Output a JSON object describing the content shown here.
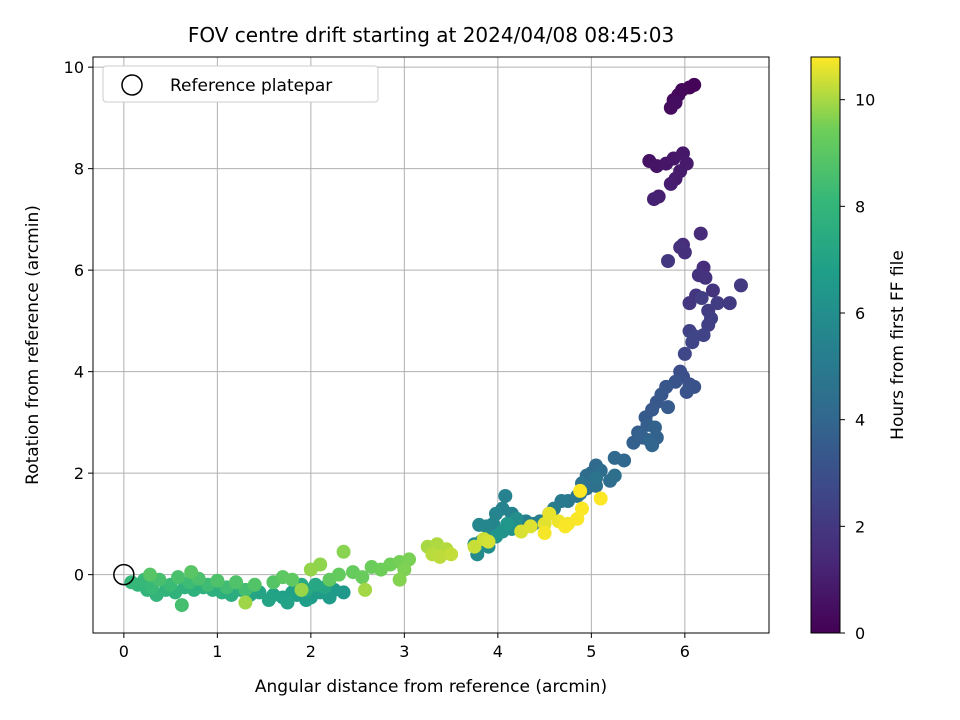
{
  "chart_data": {
    "type": "scatter",
    "title": "FOV centre drift starting at 2024/04/08 08:45:03",
    "xlabel": "Angular distance from reference (arcmin)",
    "ylabel": "Rotation from reference (arcmin)",
    "xlim": [
      -0.33,
      6.9
    ],
    "ylim": [
      -1.15,
      10.2
    ],
    "xticks": [
      "0",
      "1",
      "2",
      "3",
      "4",
      "5",
      "6"
    ],
    "yticks": [
      "0",
      "2",
      "4",
      "6",
      "8",
      "10"
    ],
    "grid": true,
    "legend": {
      "placement": "upper-left",
      "entries": [
        "Reference platepar"
      ]
    },
    "colorbar": {
      "label": "Hours from first FF file",
      "range": [
        0,
        10.8
      ],
      "ticks": [
        "0",
        "2",
        "4",
        "6",
        "8",
        "10"
      ],
      "colormap": "viridis"
    },
    "reference_point": {
      "x": 0,
      "y": 0
    },
    "series": [
      {
        "points": [
          [
            6.1,
            9.65,
            0.1
          ],
          [
            6.05,
            9.6,
            0.15
          ],
          [
            5.97,
            9.55,
            0.2
          ],
          [
            5.93,
            9.45,
            0.25
          ],
          [
            5.88,
            9.35,
            0.3
          ],
          [
            5.85,
            9.2,
            0.35
          ],
          [
            5.9,
            9.3,
            0.4
          ],
          [
            5.62,
            8.15,
            0.6
          ],
          [
            5.7,
            8.05,
            0.65
          ],
          [
            5.8,
            8.1,
            0.7
          ],
          [
            5.88,
            8.2,
            0.75
          ],
          [
            5.98,
            8.3,
            0.8
          ],
          [
            6.02,
            8.1,
            0.85
          ],
          [
            5.95,
            7.95,
            0.9
          ],
          [
            5.9,
            7.8,
            0.95
          ],
          [
            5.85,
            7.7,
            1.0
          ],
          [
            5.72,
            7.45,
            1.05
          ],
          [
            5.67,
            7.4,
            1.1
          ],
          [
            6.17,
            6.72,
            1.5
          ],
          [
            5.98,
            6.5,
            1.55
          ],
          [
            6.2,
            6.05,
            1.6
          ],
          [
            6.0,
            6.35,
            1.65
          ],
          [
            5.95,
            6.45,
            1.7
          ],
          [
            6.15,
            5.9,
            1.75
          ],
          [
            6.22,
            5.85,
            1.8
          ],
          [
            6.3,
            5.6,
            1.85
          ],
          [
            6.12,
            5.5,
            1.9
          ],
          [
            6.05,
            5.35,
            1.95
          ],
          [
            5.82,
            6.18,
            2.0
          ],
          [
            6.6,
            5.7,
            2.05
          ],
          [
            6.48,
            5.35,
            2.1
          ],
          [
            6.35,
            5.35,
            2.15
          ],
          [
            6.25,
            5.2,
            2.2
          ],
          [
            6.18,
            5.45,
            2.25
          ],
          [
            6.28,
            5.05,
            2.3
          ],
          [
            6.25,
            4.92,
            2.35
          ],
          [
            6.05,
            4.8,
            2.4
          ],
          [
            6.2,
            4.72,
            2.45
          ],
          [
            6.08,
            4.58,
            2.5
          ],
          [
            6.1,
            4.7,
            2.55
          ],
          [
            6.0,
            4.35,
            2.6
          ],
          [
            5.95,
            4.0,
            2.9
          ],
          [
            5.98,
            3.9,
            3.0
          ],
          [
            6.05,
            3.75,
            3.05
          ],
          [
            6.1,
            3.7,
            3.1
          ],
          [
            6.02,
            3.6,
            3.15
          ],
          [
            5.9,
            3.8,
            3.2
          ],
          [
            5.8,
            3.7,
            3.25
          ],
          [
            5.75,
            3.55,
            3.3
          ],
          [
            5.7,
            3.4,
            3.35
          ],
          [
            5.65,
            3.25,
            3.4
          ],
          [
            5.58,
            3.1,
            3.45
          ],
          [
            5.82,
            3.3,
            3.5
          ],
          [
            5.5,
            2.8,
            3.55
          ],
          [
            5.6,
            2.95,
            3.6
          ],
          [
            5.55,
            2.7,
            3.65
          ],
          [
            5.45,
            2.6,
            3.7
          ],
          [
            5.52,
            2.75,
            3.75
          ],
          [
            5.7,
            2.7,
            3.8
          ],
          [
            5.68,
            2.9,
            3.85
          ],
          [
            5.62,
            2.65,
            3.9
          ],
          [
            5.65,
            2.55,
            3.95
          ],
          [
            5.35,
            2.25,
            4.05
          ],
          [
            5.25,
            2.3,
            4.1
          ],
          [
            5.05,
            2.15,
            4.15
          ],
          [
            5.0,
            2.0,
            4.2
          ],
          [
            4.95,
            1.95,
            4.25
          ],
          [
            5.1,
            2.05,
            4.3
          ],
          [
            5.2,
            1.85,
            4.35
          ],
          [
            5.25,
            1.95,
            4.4
          ],
          [
            5.05,
            1.75,
            4.45
          ],
          [
            4.95,
            1.7,
            4.5
          ],
          [
            4.88,
            1.6,
            4.55
          ],
          [
            4.9,
            1.8,
            4.6
          ],
          [
            5.05,
            1.9,
            4.65
          ],
          [
            4.85,
            1.55,
            4.7
          ],
          [
            4.75,
            1.45,
            4.9
          ],
          [
            4.68,
            1.45,
            5.0
          ],
          [
            4.6,
            1.3,
            5.05
          ],
          [
            4.55,
            1.2,
            5.1
          ],
          [
            4.45,
            1.05,
            5.15
          ],
          [
            4.38,
            1.0,
            5.2
          ],
          [
            4.3,
            1.05,
            5.25
          ],
          [
            4.2,
            1.1,
            5.3
          ],
          [
            4.15,
            1.2,
            5.35
          ],
          [
            4.08,
            1.55,
            5.4
          ],
          [
            4.05,
            1.3,
            5.45
          ],
          [
            3.98,
            1.2,
            5.5
          ],
          [
            3.95,
            1.0,
            5.55
          ],
          [
            3.88,
            0.95,
            5.6
          ],
          [
            3.8,
            0.98,
            5.65
          ],
          [
            3.9,
            0.75,
            5.7
          ],
          [
            3.82,
            0.65,
            5.75
          ],
          [
            3.75,
            0.6,
            5.8
          ],
          [
            3.78,
            0.4,
            5.85
          ],
          [
            3.9,
            0.55,
            5.9
          ],
          [
            4.2,
            1.1,
            6.0
          ],
          [
            4.15,
            0.9,
            6.1
          ],
          [
            4.05,
            0.85,
            6.2
          ],
          [
            3.98,
            0.75,
            6.3
          ],
          [
            4.1,
            1.0,
            6.35
          ],
          [
            2.35,
            -0.35,
            6.5
          ],
          [
            2.25,
            -0.3,
            6.55
          ],
          [
            2.2,
            -0.45,
            6.6
          ],
          [
            2.1,
            -0.35,
            6.65
          ],
          [
            2.0,
            -0.45,
            6.7
          ],
          [
            1.95,
            -0.5,
            6.75
          ],
          [
            1.85,
            -0.4,
            6.8
          ],
          [
            1.8,
            -0.35,
            6.85
          ],
          [
            1.7,
            -0.45,
            6.9
          ],
          [
            1.75,
            -0.55,
            6.95
          ],
          [
            1.6,
            -0.4,
            7.0
          ],
          [
            1.55,
            -0.5,
            7.05
          ],
          [
            1.45,
            -0.35,
            7.1
          ],
          [
            1.35,
            -0.4,
            7.15
          ],
          [
            2.15,
            -0.25,
            7.2
          ],
          [
            2.05,
            -0.2,
            7.25
          ],
          [
            1.95,
            -0.3,
            7.3
          ],
          [
            1.9,
            -0.2,
            7.35
          ],
          [
            1.25,
            -0.3,
            7.5
          ],
          [
            1.15,
            -0.4,
            7.55
          ],
          [
            1.05,
            -0.35,
            7.6
          ],
          [
            0.95,
            -0.3,
            7.65
          ],
          [
            0.85,
            -0.25,
            7.7
          ],
          [
            0.75,
            -0.3,
            7.75
          ],
          [
            0.65,
            -0.25,
            7.8
          ],
          [
            0.55,
            -0.35,
            7.85
          ],
          [
            0.45,
            -0.3,
            7.9
          ],
          [
            0.35,
            -0.4,
            7.95
          ],
          [
            0.25,
            -0.3,
            8.0
          ],
          [
            0.15,
            -0.2,
            8.05
          ],
          [
            0.08,
            -0.15,
            8.1
          ],
          [
            0.22,
            -0.1,
            8.15
          ],
          [
            0.3,
            -0.25,
            8.2
          ],
          [
            0.5,
            -0.2,
            8.25
          ],
          [
            0.7,
            -0.15,
            8.3
          ],
          [
            0.9,
            -0.2,
            8.35
          ],
          [
            1.1,
            -0.25,
            8.4
          ],
          [
            1.3,
            -0.3,
            8.45
          ],
          [
            0.62,
            -0.6,
            8.5
          ],
          [
            0.38,
            -0.1,
            8.55
          ],
          [
            0.58,
            -0.05,
            8.6
          ],
          [
            0.8,
            -0.08,
            8.65
          ],
          [
            1.0,
            -0.12,
            8.7
          ],
          [
            1.2,
            -0.15,
            8.75
          ],
          [
            1.4,
            -0.2,
            8.8
          ],
          [
            1.6,
            -0.15,
            8.85
          ],
          [
            0.28,
            0.0,
            8.9
          ],
          [
            0.72,
            0.05,
            8.95
          ],
          [
            1.7,
            -0.05,
            9.05
          ],
          [
            1.8,
            -0.1,
            9.1
          ],
          [
            2.2,
            -0.1,
            9.15
          ],
          [
            2.3,
            0.0,
            9.2
          ],
          [
            2.45,
            0.05,
            9.25
          ],
          [
            2.55,
            -0.05,
            9.3
          ],
          [
            2.65,
            0.15,
            9.35
          ],
          [
            2.75,
            0.1,
            9.4
          ],
          [
            2.85,
            0.2,
            9.45
          ],
          [
            2.95,
            0.25,
            9.5
          ],
          [
            3.05,
            0.3,
            9.55
          ],
          [
            3.0,
            0.1,
            9.6
          ],
          [
            2.95,
            -0.1,
            9.65
          ],
          [
            2.35,
            0.45,
            9.7
          ],
          [
            2.1,
            0.2,
            9.75
          ],
          [
            2.0,
            0.1,
            9.8
          ],
          [
            1.9,
            -0.3,
            9.85
          ],
          [
            1.3,
            -0.55,
            9.9
          ],
          [
            2.58,
            -0.3,
            9.95
          ],
          [
            3.25,
            0.55,
            10.0
          ],
          [
            3.35,
            0.6,
            10.05
          ],
          [
            3.45,
            0.5,
            10.1
          ],
          [
            3.3,
            0.4,
            10.15
          ],
          [
            3.38,
            0.35,
            10.2
          ],
          [
            3.5,
            0.4,
            10.25
          ],
          [
            3.75,
            0.55,
            10.3
          ],
          [
            3.85,
            0.7,
            10.35
          ],
          [
            3.9,
            0.65,
            10.4
          ],
          [
            4.25,
            0.85,
            10.45
          ],
          [
            4.35,
            0.95,
            10.5
          ],
          [
            4.5,
            1.0,
            10.55
          ],
          [
            4.55,
            1.2,
            10.6
          ],
          [
            4.65,
            1.05,
            10.65
          ],
          [
            4.75,
            1.0,
            10.7
          ],
          [
            4.85,
            1.1,
            10.75
          ],
          [
            4.9,
            1.3,
            10.78
          ],
          [
            5.1,
            1.5,
            10.8
          ],
          [
            4.88,
            1.65,
            10.8
          ],
          [
            4.72,
            0.95,
            10.76
          ],
          [
            4.5,
            0.82,
            10.72
          ]
        ]
      }
    ]
  }
}
